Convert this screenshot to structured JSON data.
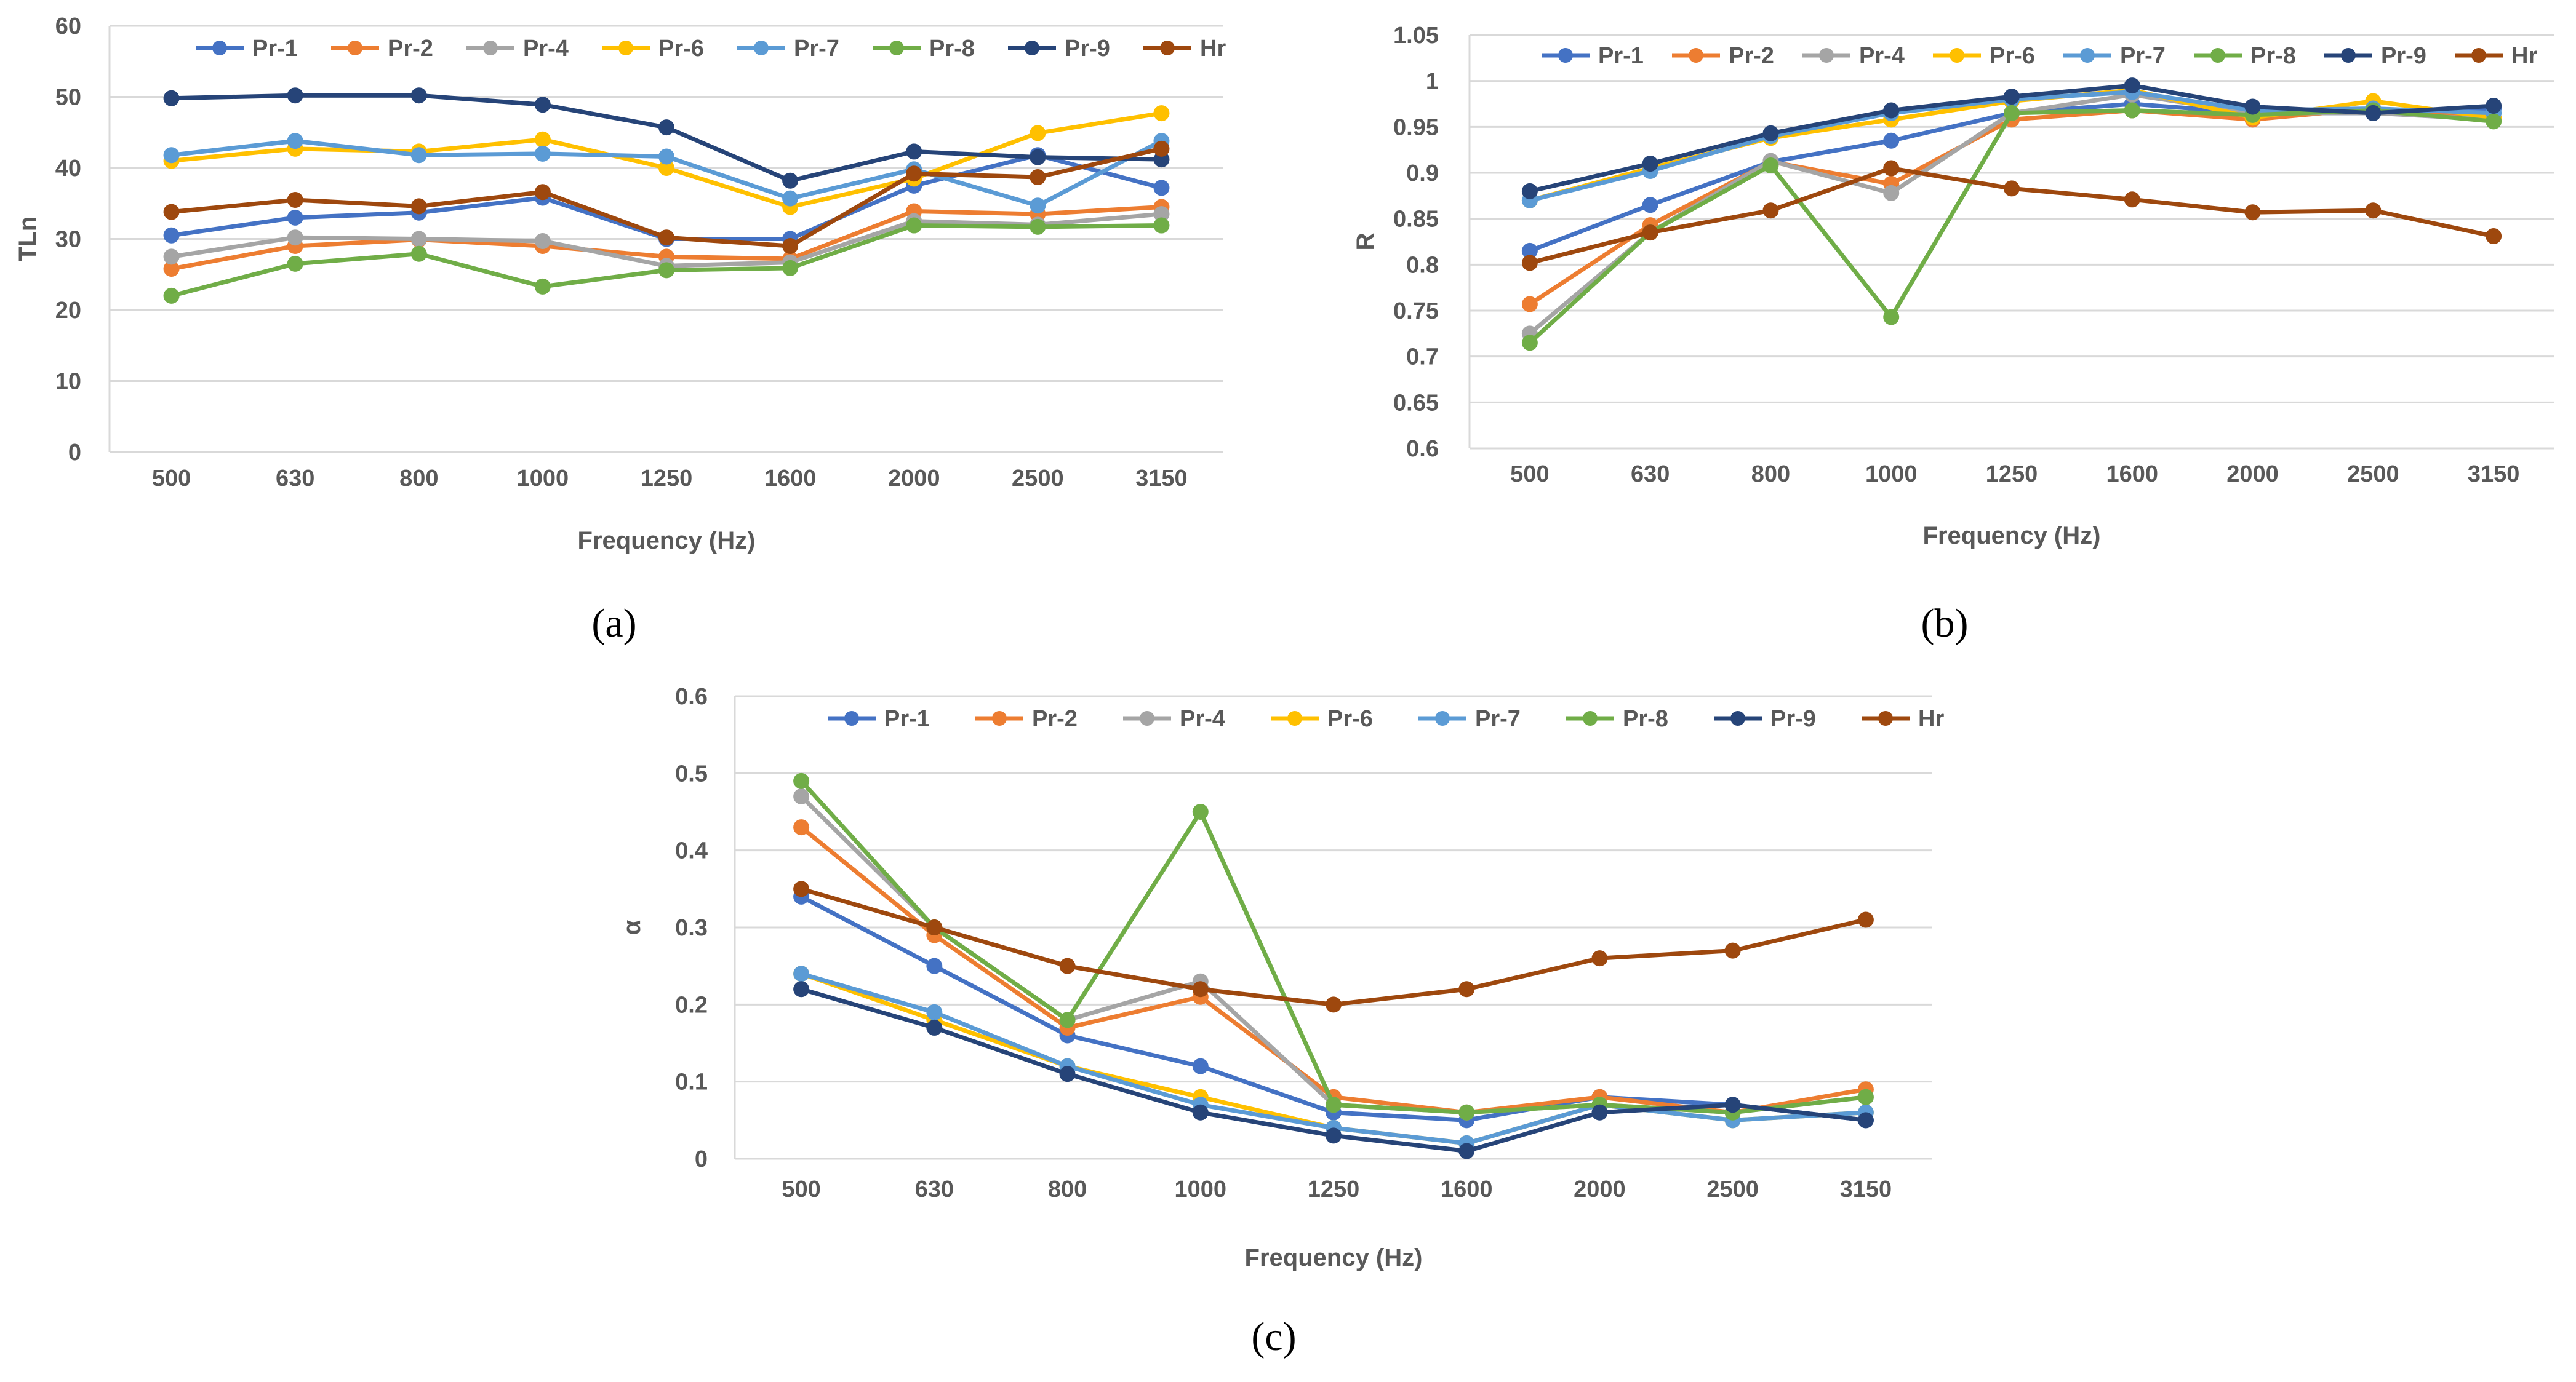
{
  "colors": {
    "Pr-1": "#4472C4",
    "Pr-2": "#ED7D31",
    "Pr-4": "#A5A5A5",
    "Pr-6": "#FFC000",
    "Pr-7": "#5B9BD5",
    "Pr-8": "#70AD47",
    "Pr-9": "#264478",
    "Hr": "#9E480E",
    "grid": "#D9D9D9",
    "text": "#595959"
  },
  "chart_data": [
    {
      "type": "line",
      "caption": "(a)",
      "xlabel": "Frequency (Hz)",
      "ylabel": "TLn",
      "categories": [
        "500",
        "630",
        "800",
        "1000",
        "1250",
        "1600",
        "2000",
        "2500",
        "3150"
      ],
      "ylim": [
        0,
        60
      ],
      "yticks": [
        "0",
        "10",
        "20",
        "30",
        "40",
        "50",
        "60"
      ],
      "grid": true,
      "legend_position": "top",
      "series": [
        {
          "name": "Pr-1",
          "values": [
            30.5,
            33.0,
            33.7,
            35.8,
            30.0,
            30.0,
            37.5,
            41.8,
            37.2
          ]
        },
        {
          "name": "Pr-2",
          "values": [
            25.8,
            29.0,
            29.9,
            29.0,
            27.5,
            27.2,
            33.9,
            33.5,
            34.5
          ]
        },
        {
          "name": "Pr-4",
          "values": [
            27.5,
            30.2,
            30.0,
            29.7,
            26.2,
            26.7,
            32.5,
            32.0,
            33.5
          ]
        },
        {
          "name": "Pr-6",
          "values": [
            41.0,
            42.7,
            42.3,
            44.0,
            40.0,
            34.5,
            38.5,
            44.9,
            47.7
          ]
        },
        {
          "name": "Pr-7",
          "values": [
            41.8,
            43.8,
            41.8,
            42.0,
            41.6,
            35.7,
            39.8,
            34.7,
            43.8
          ]
        },
        {
          "name": "Pr-8",
          "values": [
            22.0,
            26.5,
            27.9,
            23.3,
            25.6,
            25.9,
            31.9,
            31.7,
            31.9
          ]
        },
        {
          "name": "Pr-9",
          "values": [
            49.8,
            50.2,
            50.2,
            48.9,
            45.7,
            38.2,
            42.3,
            41.5,
            41.2
          ]
        },
        {
          "name": "Hr",
          "values": [
            33.8,
            35.5,
            34.6,
            36.6,
            30.2,
            29.0,
            39.2,
            38.7,
            42.7
          ]
        }
      ]
    },
    {
      "type": "line",
      "caption": "(b)",
      "xlabel": "Frequency (Hz)",
      "ylabel": "R",
      "categories": [
        "500",
        "630",
        "800",
        "1000",
        "1250",
        "1600",
        "2000",
        "2500",
        "3150"
      ],
      "ylim": [
        0.6,
        1.05
      ],
      "yticks": [
        "0.6",
        "0.65",
        "0.7",
        "0.75",
        "0.8",
        "0.85",
        "0.9",
        "0.95",
        "1",
        "1.05"
      ],
      "grid": true,
      "legend_position": "top",
      "series": [
        {
          "name": "Pr-1",
          "values": [
            0.815,
            0.865,
            0.912,
            0.935,
            0.965,
            0.975,
            0.965,
            0.965,
            0.97
          ]
        },
        {
          "name": "Pr-2",
          "values": [
            0.757,
            0.843,
            0.912,
            0.888,
            0.958,
            0.968,
            0.958,
            0.97,
            0.96
          ]
        },
        {
          "name": "Pr-4",
          "values": [
            0.725,
            0.835,
            0.913,
            0.878,
            0.965,
            0.985,
            0.965,
            0.965,
            0.958
          ]
        },
        {
          "name": "Pr-6",
          "values": [
            0.87,
            0.905,
            0.938,
            0.958,
            0.978,
            0.99,
            0.96,
            0.978,
            0.96
          ]
        },
        {
          "name": "Pr-7",
          "values": [
            0.87,
            0.902,
            0.94,
            0.965,
            0.98,
            0.988,
            0.968,
            0.97,
            0.965
          ]
        },
        {
          "name": "Pr-8",
          "values": [
            0.715,
            0.835,
            0.908,
            0.743,
            0.965,
            0.968,
            0.963,
            0.968,
            0.956
          ]
        },
        {
          "name": "Pr-9",
          "values": [
            0.88,
            0.91,
            0.943,
            0.968,
            0.983,
            0.995,
            0.972,
            0.965,
            0.973
          ]
        },
        {
          "name": "Hr",
          "values": [
            0.802,
            0.835,
            0.859,
            0.905,
            0.883,
            0.871,
            0.857,
            0.859,
            0.831
          ]
        }
      ]
    },
    {
      "type": "line",
      "caption": "(c)",
      "xlabel": "Frequency (Hz)",
      "ylabel": "α",
      "categories": [
        "500",
        "630",
        "800",
        "1000",
        "1250",
        "1600",
        "2000",
        "2500",
        "3150"
      ],
      "ylim": [
        0,
        0.6
      ],
      "yticks": [
        "0",
        "0.1",
        "0.2",
        "0.3",
        "0.4",
        "0.5",
        "0.6"
      ],
      "grid": true,
      "legend_position": "top",
      "series": [
        {
          "name": "Pr-1",
          "values": [
            0.34,
            0.25,
            0.16,
            0.12,
            0.06,
            0.05,
            0.08,
            0.07,
            0.05
          ]
        },
        {
          "name": "Pr-2",
          "values": [
            0.43,
            0.29,
            0.17,
            0.21,
            0.08,
            0.06,
            0.08,
            0.06,
            0.09
          ]
        },
        {
          "name": "Pr-4",
          "values": [
            0.47,
            0.3,
            0.18,
            0.23,
            0.07,
            0.06,
            0.07,
            0.06,
            0.08
          ]
        },
        {
          "name": "Pr-6",
          "values": [
            0.24,
            0.18,
            0.12,
            0.08,
            0.04,
            0.02,
            0.07,
            0.05,
            0.06
          ]
        },
        {
          "name": "Pr-7",
          "values": [
            0.24,
            0.19,
            0.12,
            0.07,
            0.04,
            0.02,
            0.07,
            0.05,
            0.06
          ]
        },
        {
          "name": "Pr-8",
          "values": [
            0.49,
            0.3,
            0.18,
            0.45,
            0.07,
            0.06,
            0.07,
            0.06,
            0.08
          ]
        },
        {
          "name": "Pr-9",
          "values": [
            0.22,
            0.17,
            0.11,
            0.06,
            0.03,
            0.01,
            0.06,
            0.07,
            0.05
          ]
        },
        {
          "name": "Hr",
          "values": [
            0.35,
            0.3,
            0.25,
            0.22,
            0.2,
            0.22,
            0.26,
            0.27,
            0.31
          ]
        }
      ]
    }
  ]
}
